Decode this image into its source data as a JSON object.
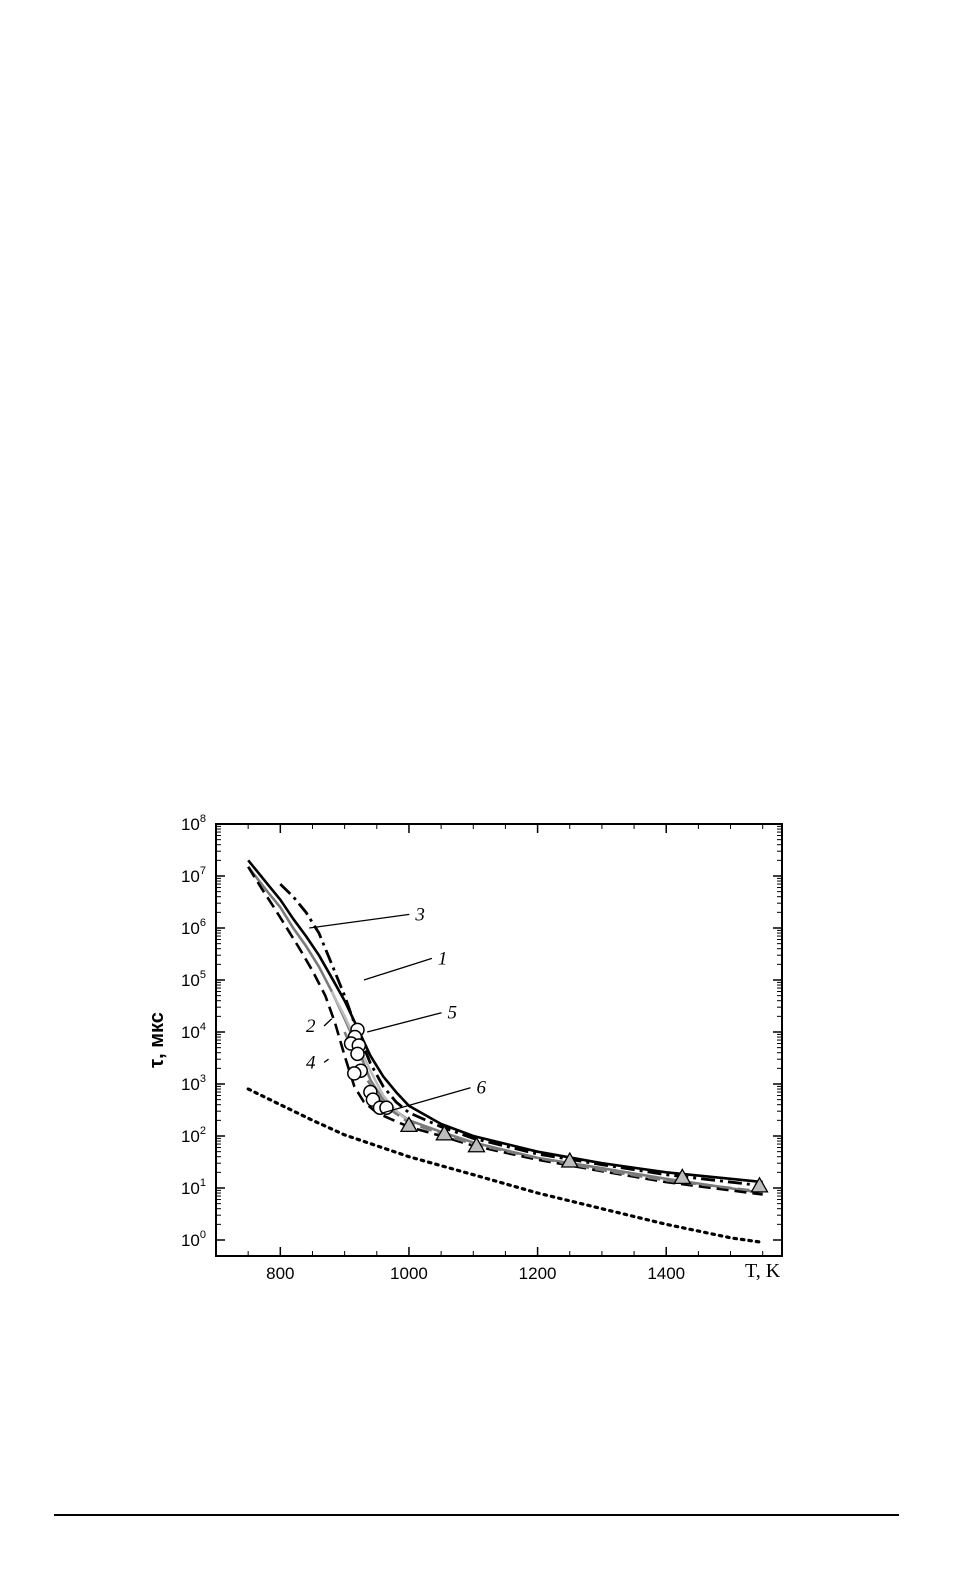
{
  "chart_data": {
    "type": "line",
    "xlabel": "T, K",
    "ylabel": "τ, мкс",
    "xlim": [
      700,
      1580
    ],
    "ylim": [
      0.5,
      100000000
    ],
    "y_scale": "log",
    "x_ticks": [
      800,
      1000,
      1200,
      1400
    ],
    "y_tick_labels": [
      {
        "base": "10",
        "exp": "0"
      },
      {
        "base": "10",
        "exp": "1"
      },
      {
        "base": "10",
        "exp": "2"
      },
      {
        "base": "10",
        "exp": "3"
      },
      {
        "base": "10",
        "exp": "4"
      },
      {
        "base": "10",
        "exp": "5"
      },
      {
        "base": "10",
        "exp": "6"
      },
      {
        "base": "10",
        "exp": "7"
      },
      {
        "base": "10",
        "exp": "8"
      }
    ],
    "series": [
      {
        "name": "1",
        "style": "solid",
        "color": "#000000",
        "points": [
          [
            750,
            20000000
          ],
          [
            780,
            7000000
          ],
          [
            800,
            3500000
          ],
          [
            820,
            1500000
          ],
          [
            840,
            700000
          ],
          [
            860,
            300000
          ],
          [
            880,
            110000
          ],
          [
            900,
            40000
          ],
          [
            920,
            12000
          ],
          [
            940,
            3500
          ],
          [
            960,
            1400
          ],
          [
            980,
            700
          ],
          [
            1000,
            380
          ],
          [
            1050,
            170
          ],
          [
            1100,
            100
          ],
          [
            1200,
            50
          ],
          [
            1300,
            30
          ],
          [
            1400,
            20
          ],
          [
            1550,
            13
          ]
        ]
      },
      {
        "name": "2",
        "style": "solid",
        "color": "#7a7a7a",
        "points": [
          [
            750,
            15000000
          ],
          [
            780,
            5000000
          ],
          [
            800,
            2500000
          ],
          [
            820,
            1000000
          ],
          [
            840,
            450000
          ],
          [
            860,
            180000
          ],
          [
            880,
            60000
          ],
          [
            900,
            18000
          ],
          [
            920,
            5000
          ],
          [
            940,
            1200
          ],
          [
            960,
            500
          ],
          [
            980,
            300
          ],
          [
            1000,
            200
          ],
          [
            1050,
            120
          ],
          [
            1100,
            75
          ],
          [
            1200,
            38
          ],
          [
            1300,
            24
          ],
          [
            1400,
            15
          ],
          [
            1550,
            8
          ]
        ]
      },
      {
        "name": "3",
        "style": "dashdot",
        "color": "#000000",
        "points": [
          [
            800,
            7000000
          ],
          [
            820,
            4000000
          ],
          [
            840,
            2000000
          ],
          [
            860,
            800000
          ],
          [
            880,
            200000
          ],
          [
            900,
            50000
          ],
          [
            920,
            10000
          ],
          [
            940,
            2500
          ],
          [
            960,
            900
          ],
          [
            980,
            450
          ],
          [
            1000,
            280
          ],
          [
            1050,
            150
          ],
          [
            1100,
            90
          ],
          [
            1200,
            45
          ],
          [
            1300,
            28
          ],
          [
            1400,
            18
          ],
          [
            1550,
            11
          ]
        ]
      },
      {
        "name": "4",
        "style": "dashed",
        "color": "#000000",
        "points": [
          [
            750,
            15000000
          ],
          [
            770,
            6000000
          ],
          [
            790,
            2500000
          ],
          [
            810,
            1000000
          ],
          [
            830,
            400000
          ],
          [
            850,
            150000
          ],
          [
            870,
            50000
          ],
          [
            885,
            15000
          ],
          [
            900,
            3500
          ],
          [
            915,
            900
          ],
          [
            930,
            450
          ],
          [
            950,
            280
          ],
          [
            980,
            190
          ],
          [
            1000,
            150
          ],
          [
            1050,
            100
          ],
          [
            1100,
            65
          ],
          [
            1200,
            35
          ],
          [
            1300,
            21
          ],
          [
            1400,
            13
          ],
          [
            1550,
            7.5
          ]
        ]
      },
      {
        "name": "5",
        "style": "solid",
        "color": "#bdbdbd",
        "points": [
          [
            880,
            60000
          ],
          [
            900,
            20000
          ],
          [
            920,
            6000
          ],
          [
            940,
            1800
          ],
          [
            960,
            600
          ],
          [
            980,
            300
          ],
          [
            1000,
            190
          ]
        ]
      },
      {
        "name": "6",
        "style": "dashed",
        "color": "#7a7a7a",
        "points": [
          [
            900,
            10000
          ],
          [
            930,
            1500
          ],
          [
            960,
            400
          ],
          [
            1000,
            180
          ],
          [
            1050,
            110
          ],
          [
            1100,
            70
          ],
          [
            1200,
            38
          ],
          [
            1300,
            22
          ],
          [
            1400,
            14
          ],
          [
            1550,
            8.5
          ]
        ]
      },
      {
        "name": "",
        "style": "dotted",
        "color": "#000000",
        "points": [
          [
            750,
            800
          ],
          [
            800,
            400
          ],
          [
            850,
            200
          ],
          [
            900,
            105
          ],
          [
            1000,
            40
          ],
          [
            1100,
            18
          ],
          [
            1200,
            8
          ],
          [
            1300,
            4
          ],
          [
            1400,
            2
          ],
          [
            1500,
            1.1
          ],
          [
            1550,
            0.9
          ]
        ]
      }
    ],
    "markers_circle": [
      [
        920,
        11000
      ],
      [
        916,
        8000
      ],
      [
        910,
        6000
      ],
      [
        922,
        5500
      ],
      [
        920,
        3800
      ],
      [
        925,
        1800
      ],
      [
        915,
        1600
      ],
      [
        940,
        700
      ],
      [
        944,
        500
      ],
      [
        955,
        350
      ],
      [
        965,
        350
      ]
    ],
    "markers_triangle": [
      [
        1000,
        160
      ],
      [
        1055,
        110
      ],
      [
        1105,
        65
      ],
      [
        1250,
        33
      ],
      [
        1425,
        16
      ],
      [
        1545,
        11
      ]
    ],
    "annotations": [
      {
        "text": "1",
        "x": 930,
        "y": 100000,
        "label_x": 1045,
        "label_y": 200000
      },
      {
        "text": "2",
        "x": 880,
        "y": 18000,
        "label_x": 840,
        "label_y": 10000
      },
      {
        "text": "3",
        "x": 845,
        "y": 1000000,
        "label_x": 1010,
        "label_y": 1400000
      },
      {
        "text": "4",
        "x": 875,
        "y": 3000,
        "label_x": 840,
        "label_y": 2000
      },
      {
        "text": "5",
        "x": 935,
        "y": 10000,
        "label_x": 1060,
        "label_y": 18000
      },
      {
        "text": "6",
        "x": 960,
        "y": 280,
        "label_x": 1105,
        "label_y": 650
      }
    ]
  }
}
